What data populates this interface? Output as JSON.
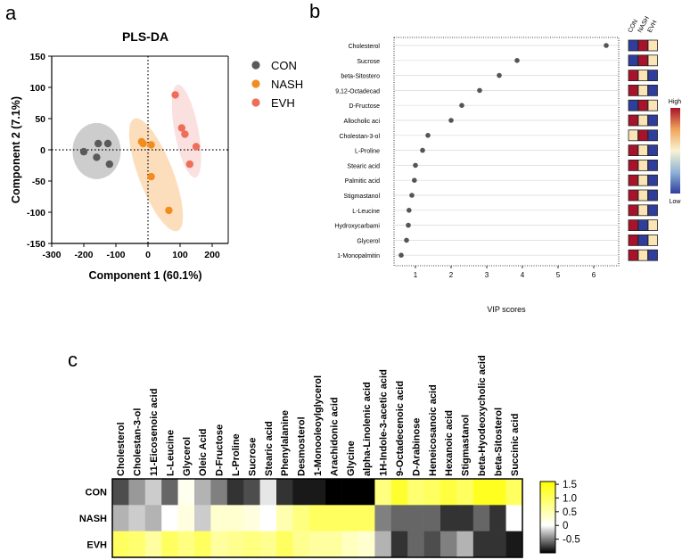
{
  "panel_labels": {
    "a": "a",
    "b": "b",
    "c": "c"
  },
  "chart_data": [
    {
      "id": "pls-da",
      "type": "scatter",
      "title": "PLS-DA",
      "xlabel": "Component 1 (60.1%)",
      "ylabel": "Component 2 (7.1%)",
      "xlim": [
        -300,
        250
      ],
      "ylim": [
        -150,
        150
      ],
      "xticks": [
        -300,
        -200,
        -100,
        0,
        100,
        200
      ],
      "yticks": [
        -150,
        -100,
        -50,
        0,
        50,
        100,
        150
      ],
      "series": [
        {
          "name": "CON",
          "color": "#5a5a5a",
          "ellipse_color": "#c4c4c4",
          "points": [
            [
              -200,
              -3
            ],
            [
              -160,
              -12
            ],
            [
              -155,
              10
            ],
            [
              -125,
              10
            ],
            [
              -120,
              -23
            ]
          ],
          "ellipse": {
            "cx": -160,
            "cy": -2,
            "rx": 75,
            "ry": 45,
            "angle": 0
          }
        },
        {
          "name": "NASH",
          "color": "#f28c1e",
          "ellipse_color": "#fbd8b0",
          "points": [
            [
              -20,
              13
            ],
            [
              -15,
              10
            ],
            [
              10,
              8
            ],
            [
              10,
              -43
            ],
            [
              65,
              -97
            ]
          ],
          "ellipse": {
            "cx": 25,
            "cy": -40,
            "rx": 115,
            "ry": 45,
            "angle": -48
          }
        },
        {
          "name": "EVH",
          "color": "#ee6e5a",
          "ellipse_color": "#fadada",
          "points": [
            [
              85,
              88
            ],
            [
              105,
              35
            ],
            [
              115,
              25
            ],
            [
              150,
              5
            ],
            [
              130,
              -23
            ]
          ],
          "ellipse": {
            "cx": 120,
            "cy": 30,
            "rx": 80,
            "ry": 35,
            "angle": -66
          }
        }
      ]
    },
    {
      "id": "vip",
      "type": "scatter",
      "xlabel": "VIP scores",
      "xlim": [
        0.4,
        6.7
      ],
      "xticks": [
        1,
        2,
        3,
        4,
        5,
        6
      ],
      "features": [
        "Cholesterol",
        "Sucrose",
        "beta-Sitostero",
        "9,12-Octadecad",
        "D-Fructose",
        "Allocholic aci",
        "Cholestan-3-ol",
        "L-Proline",
        "Stearic acid",
        "Palmitic acid",
        "Stigmastanol",
        "L-Leucine",
        "Hydroxycarbami",
        "Glycerol",
        "1-Monopalmitin"
      ],
      "values": [
        6.35,
        3.85,
        3.35,
        2.8,
        2.3,
        2.0,
        1.35,
        1.2,
        1.0,
        0.97,
        0.9,
        0.82,
        0.8,
        0.75,
        0.6
      ],
      "group_labels": [
        "CON",
        "NASH",
        "EVH"
      ],
      "group_levels": [
        [
          "low",
          "high",
          "mid"
        ],
        [
          "low",
          "high",
          "mid"
        ],
        [
          "high",
          "mid",
          "low"
        ],
        [
          "high",
          "mid",
          "low"
        ],
        [
          "low",
          "high",
          "mid"
        ],
        [
          "high",
          "mid",
          "low"
        ],
        [
          "mid",
          "high",
          "low"
        ],
        [
          "high",
          "mid",
          "low"
        ],
        [
          "high",
          "mid",
          "low"
        ],
        [
          "high",
          "mid",
          "low"
        ],
        [
          "high",
          "mid",
          "low"
        ],
        [
          "high",
          "mid",
          "low"
        ],
        [
          "high",
          "low",
          "mid"
        ],
        [
          "high",
          "low",
          "mid"
        ],
        [
          "high",
          "mid",
          "low"
        ]
      ],
      "level_colors": {
        "low": "#2f3e9c",
        "mid": "#fbe5b6",
        "high": "#a8122a"
      },
      "scale_labels": {
        "high": "High",
        "low": "Low"
      }
    },
    {
      "id": "heatmap",
      "type": "heatmap",
      "columns": [
        "Cholesterol",
        "Cholestan-3-ol",
        "11-Eicosenoic acid",
        "L-Leucine",
        "Glycerol",
        "Oleic Acid",
        "D-Fructose",
        "L-Proline",
        "Sucrose",
        "Stearic acid",
        "Phenylalanine",
        "Desmosterol",
        "1-Monooleoylglycerol",
        "Arachidonic acid",
        "Glycine",
        "alpha-Linolenic acid",
        "1H-Indole-3-acetic acid",
        "9-Octadecenoic acid",
        "D-Arabinose",
        "Heneicosanoic acid",
        "Hexanoic acid",
        "Stigmastanol",
        "beta-Hyodeoxycholic acid",
        "beta-Sitosterol",
        "Succinic acid"
      ],
      "rows": [
        "CON",
        "NASH",
        "EVH"
      ],
      "values": [
        [
          -0.7,
          -0.4,
          -0.2,
          -0.6,
          0.1,
          -0.3,
          -0.5,
          -0.8,
          -0.7,
          -0.1,
          -0.8,
          -0.9,
          -0.9,
          -1.0,
          -1.0,
          -1.0,
          0.8,
          1.3,
          0.9,
          1.0,
          1.2,
          1.0,
          1.4,
          1.4,
          1.0
        ],
        [
          -0.3,
          -0.2,
          -0.3,
          0.0,
          0.2,
          -0.2,
          0.3,
          0.3,
          0.2,
          0.0,
          0.5,
          0.8,
          1.0,
          1.0,
          1.0,
          1.0,
          -0.5,
          -0.6,
          -0.6,
          -0.6,
          -0.8,
          -0.8,
          -0.6,
          -0.8,
          0.0
        ],
        [
          1.0,
          0.9,
          0.6,
          1.0,
          0.8,
          1.0,
          0.6,
          0.7,
          0.8,
          0.7,
          1.0,
          0.7,
          0.6,
          0.6,
          0.4,
          0.3,
          -0.3,
          -0.8,
          -0.6,
          -0.7,
          -0.5,
          -0.3,
          -0.8,
          -0.8,
          -0.9
        ]
      ],
      "vmin": -1.0,
      "vmax": 1.6,
      "colorbar_ticks": [
        1.5,
        1.0,
        0.5,
        0,
        -0.5
      ],
      "colorbar_tick_labels": [
        "1.5",
        "1.0",
        "0.5",
        "0",
        "-0.5"
      ]
    }
  ]
}
